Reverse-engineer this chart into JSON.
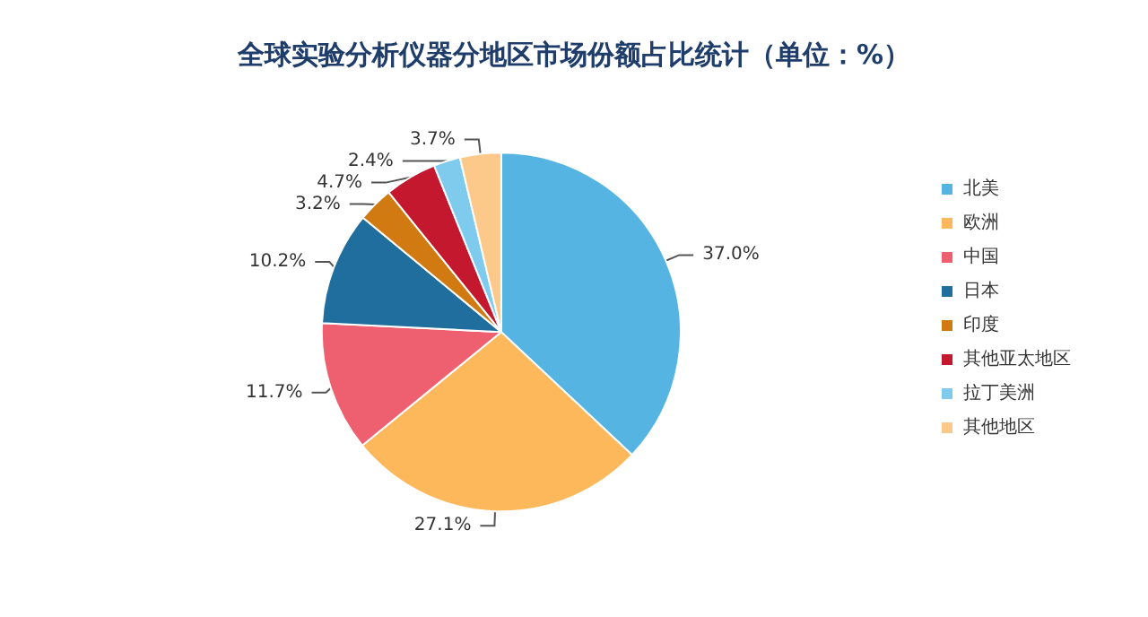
{
  "chart_data": {
    "type": "pie",
    "title": "全球实验分析仪器分地区市场份额占比统计（单位：%）",
    "categories": [
      "北美",
      "欧洲",
      "中国",
      "日本",
      "印度",
      "其他亚太地区",
      "拉丁美洲",
      "其他地区"
    ],
    "values": [
      37.0,
      27.1,
      11.7,
      10.2,
      3.2,
      4.7,
      2.4,
      3.7
    ],
    "value_labels": [
      "37.0%",
      "27.1%",
      "11.7%",
      "10.2%",
      "3.2%",
      "4.7%",
      "2.4%",
      "3.7%"
    ],
    "colors": [
      "#56b4e3",
      "#fdb85c",
      "#ee5f6f",
      "#1f6e9e",
      "#d27a12",
      "#c4182f",
      "#7fcbed",
      "#fdc98a"
    ],
    "legend": "right"
  }
}
